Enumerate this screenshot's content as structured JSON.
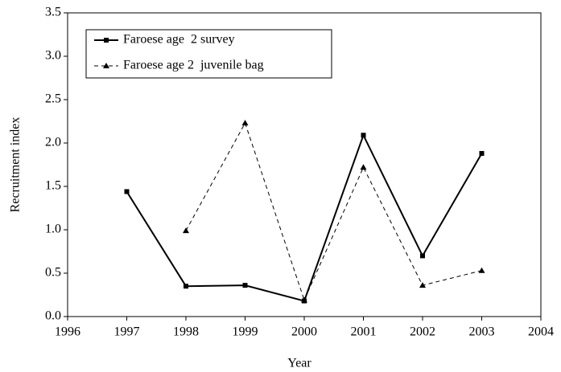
{
  "chart_data": {
    "type": "line",
    "x_label": "Year",
    "y_label": "Recruitment index",
    "x": [
      1997,
      1998,
      1999,
      2000,
      2001,
      2002,
      2003
    ],
    "series": [
      {
        "name": "Faroese age  2 survey",
        "color": "#000000",
        "dash": "solid",
        "marker": "square",
        "values": [
          1.44,
          0.35,
          0.36,
          0.18,
          2.09,
          0.7,
          1.88
        ]
      },
      {
        "name": "Faroese age 2  juvenile bag",
        "color": "#000000",
        "dash": "dashed",
        "marker": "triangle",
        "values": [
          null,
          0.99,
          2.23,
          0.19,
          1.72,
          0.36,
          0.53
        ]
      }
    ],
    "xlim": [
      1996,
      2004
    ],
    "xticks": [
      1996,
      1997,
      1998,
      1999,
      2000,
      2001,
      2002,
      2003,
      2004
    ],
    "ylim": [
      0,
      3.5
    ],
    "yticks": [
      {
        "value": 0,
        "label": "0.0"
      },
      0.5,
      {
        "value": 1,
        "label": "1.0"
      },
      1.5,
      {
        "value": 2,
        "label": "2.0"
      },
      2.5,
      {
        "value": 3,
        "label": "3.0"
      },
      3.5
    ],
    "legend": "top-left"
  }
}
